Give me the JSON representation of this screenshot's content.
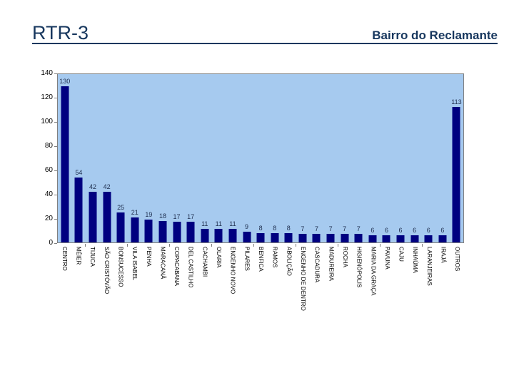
{
  "header": {
    "title": "RTR-3",
    "subtitle": "Bairro do Reclamante"
  },
  "colors": {
    "accent": "#17375E",
    "bar": "#000080",
    "plot_bg": "#A6CAEF",
    "plot_border": "#808080",
    "value_text": "#203050",
    "axis_text": "#000000"
  },
  "chart_data": {
    "type": "bar",
    "title": "",
    "xlabel": "",
    "ylabel": "",
    "ylim": [
      0,
      140
    ],
    "yticks": [
      0,
      20,
      40,
      60,
      80,
      100,
      120,
      140
    ],
    "grid": false,
    "legend": false,
    "value_labels": true,
    "categories": [
      "CENTRO",
      "MÉIER",
      "TIJUCA",
      "SÃO CRISTÓVÃO",
      "BONSUCESSO",
      "VILA ISABEL",
      "PENHA",
      "MARACANÃ",
      "COPACABANA",
      "DEL CASTILHO",
      "CACHAMBI",
      "OLARIA",
      "ENGENHO NOVO",
      "PILARES",
      "BENFICA",
      "RAMOS",
      "ABOLIÇÃO",
      "ENGENHO DE DENTRO",
      "CASCADURA",
      "MADUREIRA",
      "ROCHA",
      "HIGIENÓPOLIS",
      "MARIA DA GRAÇA",
      "PAVUNA",
      "CAJU",
      "INHAÚMA",
      "LARANJEIRAS",
      "IRAJÁ",
      "OUTROS"
    ],
    "values": [
      130,
      54,
      42,
      42,
      25,
      21,
      19,
      18,
      17,
      17,
      11,
      11,
      11,
      9,
      8,
      8,
      8,
      7,
      7,
      7,
      7,
      7,
      6,
      6,
      6,
      6,
      6,
      6,
      113
    ]
  }
}
